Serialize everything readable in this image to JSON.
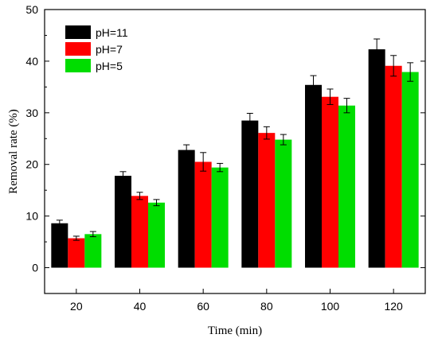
{
  "chart_data": {
    "type": "bar",
    "xlabel": "Time (min)",
    "ylabel": "Removal rate (%)",
    "ylim": [
      -5,
      50
    ],
    "yticks": [
      0,
      10,
      20,
      30,
      40,
      50
    ],
    "categories": [
      "20",
      "40",
      "60",
      "80",
      "100",
      "120"
    ],
    "series": [
      {
        "name": "pH=11",
        "color": "#000000",
        "values": [
          8.6,
          17.8,
          22.8,
          28.5,
          35.4,
          42.3
        ],
        "errors": [
          0.6,
          0.8,
          1.0,
          1.4,
          1.8,
          2.0
        ]
      },
      {
        "name": "pH=7",
        "color": "#ff0000",
        "values": [
          5.7,
          13.9,
          20.5,
          26.1,
          33.1,
          39.1
        ],
        "errors": [
          0.4,
          0.7,
          1.8,
          1.2,
          1.5,
          2.0
        ]
      },
      {
        "name": "pH=5",
        "color": "#00dd00",
        "values": [
          6.5,
          12.6,
          19.4,
          24.8,
          31.4,
          37.9
        ],
        "errors": [
          0.5,
          0.6,
          0.8,
          1.0,
          1.4,
          1.8
        ]
      }
    ],
    "legend_position": "top-left",
    "grid": false
  }
}
